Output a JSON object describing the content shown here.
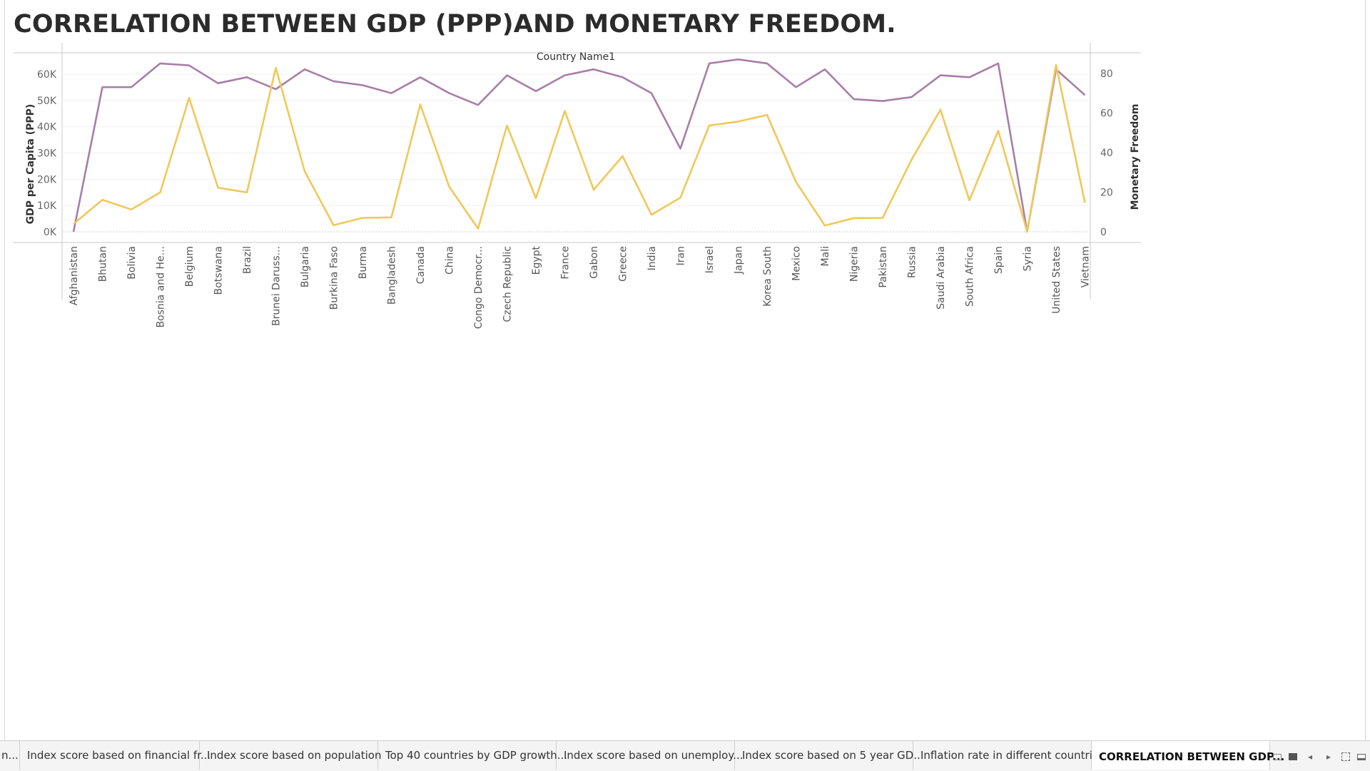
{
  "title": "CORRELATION BETWEEN GDP (PPP)AND MONETARY FREEDOM.",
  "chart_data": {
    "type": "line",
    "header": "Country Name1",
    "ylabel_left": "GDP per Capita (PPP)",
    "ylabel_right": "Monetary Freedom",
    "left_ticks": [
      "0K",
      "10K",
      "20K",
      "30K",
      "40K",
      "50K",
      "60K"
    ],
    "right_ticks": [
      "0",
      "20",
      "40",
      "60",
      "80"
    ],
    "ylim_left": [
      0,
      66000
    ],
    "ylim_right": [
      0,
      90
    ],
    "categories": [
      "Afghanistan",
      "Bhutan",
      "Bolivia",
      "Bosnia and He...",
      "Belgium",
      "Botswana",
      "Brazil",
      "Brunei Daruss...",
      "Bulgaria",
      "Burkina Faso",
      "Burma",
      "Bangladesh",
      "Canada",
      "China",
      "Congo Democr...",
      "Czech Republic",
      "Egypt",
      "France",
      "Gabon",
      "Greece",
      "India",
      "Iran",
      "Israel",
      "Japan",
      "Korea South",
      "Mexico",
      "Mali",
      "Nigeria",
      "Pakistan",
      "Russia",
      "Saudi Arabia",
      "South Africa",
      "Spain",
      "Syria",
      "United States",
      "Vietnam"
    ],
    "series": [
      {
        "name": "Monetary Freedom",
        "axis": "right",
        "color": "#a87ea8",
        "values": [
          0,
          73,
          73,
          85,
          84,
          75,
          78,
          72,
          82,
          76,
          74,
          70,
          78,
          70,
          64,
          79,
          71,
          79,
          82,
          78,
          70,
          42,
          85,
          87,
          85,
          73,
          82,
          67,
          66,
          68,
          79,
          78,
          85,
          0,
          82,
          69
        ]
      },
      {
        "name": "GDP per Capita (PPP)",
        "axis": "left",
        "color": "#f0c85a",
        "values": [
          3000,
          12200,
          8500,
          15000,
          51000,
          16800,
          15000,
          62500,
          23000,
          2500,
          5300,
          5500,
          48500,
          17200,
          1200,
          40500,
          12800,
          46000,
          16000,
          28800,
          6500,
          13000,
          40500,
          42000,
          44500,
          19000,
          2400,
          5200,
          5300,
          27500,
          46500,
          12000,
          38500,
          0,
          63500,
          11000
        ]
      }
    ]
  },
  "tabs": [
    {
      "label": "n...",
      "active": false
    },
    {
      "label": "Index score based on financial fr...",
      "active": false
    },
    {
      "label": "Index score based on population",
      "active": false
    },
    {
      "label": "Top 40 countries by GDP growth...",
      "active": false
    },
    {
      "label": "Index score based on unemploy...",
      "active": false
    },
    {
      "label": "Index score based on 5 year GD...",
      "active": false
    },
    {
      "label": "Inflation rate in different countries",
      "active": false
    },
    {
      "label": "CORRELATION BETWEEN GDP...",
      "active": true
    }
  ],
  "controls": {
    "grid_icon": "grid-view-icon",
    "filmstrip_icon": "filmstrip-icon",
    "prev_icon": "chevron-left-icon",
    "next_icon": "chevron-right-icon",
    "fullscreen_icon": "fullscreen-icon",
    "present_icon": "presentation-icon",
    "prev_glyph": "◂",
    "next_glyph": "▸"
  }
}
